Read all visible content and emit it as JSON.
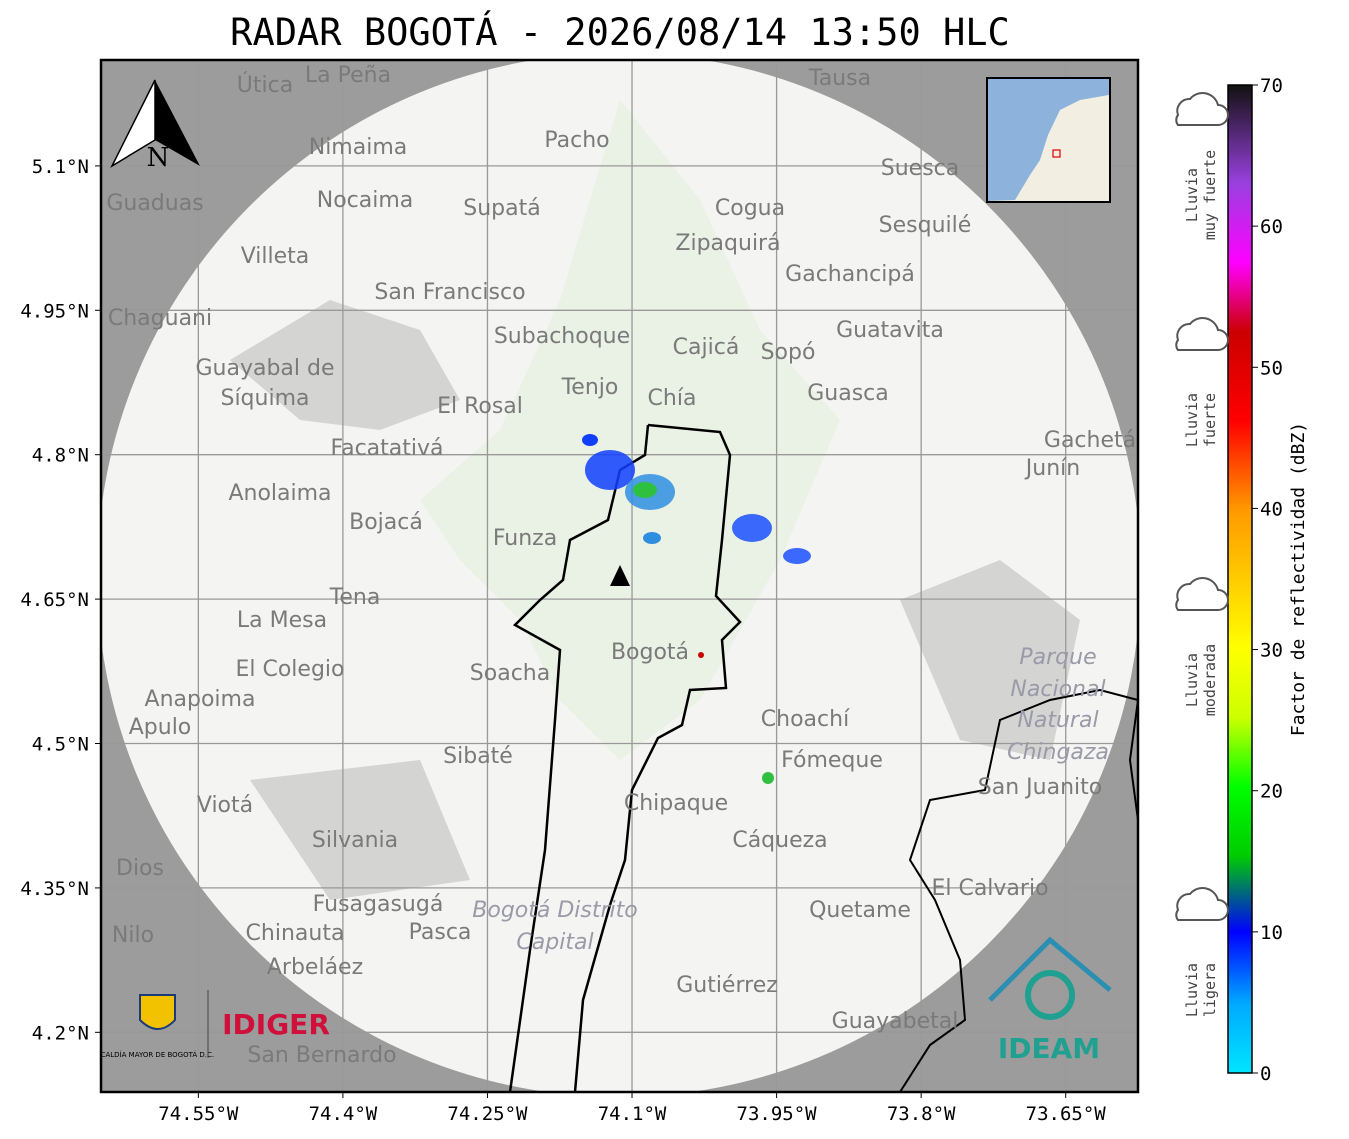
{
  "map": {
    "title": "RADAR BOGOTÁ - 2026/08/14 13:50 HLC",
    "latlim": [
      4.138,
      5.21
    ],
    "lonlim": [
      -74.651,
      -73.575
    ],
    "lat_ticks": [
      {
        "value": 5.1,
        "label": "5.1°N"
      },
      {
        "value": 4.95,
        "label": "4.95°N"
      },
      {
        "value": 4.8,
        "label": "4.8°N"
      },
      {
        "value": 4.65,
        "label": "4.65°N"
      },
      {
        "value": 4.5,
        "label": "4.5°N"
      },
      {
        "value": 4.35,
        "label": "4.35°N"
      },
      {
        "value": 4.2,
        "label": "4.2°N"
      }
    ],
    "lon_ticks": [
      {
        "value": -74.55,
        "label": "74.55°W"
      },
      {
        "value": -74.4,
        "label": "74.4°W"
      },
      {
        "value": -74.25,
        "label": "74.25°W"
      },
      {
        "value": -74.1,
        "label": "74.1°W"
      },
      {
        "value": -73.95,
        "label": "73.95°W"
      },
      {
        "value": -73.8,
        "label": "73.8°W"
      },
      {
        "value": -73.65,
        "label": "73.65°W"
      }
    ],
    "north": "N",
    "colorbar": {
      "label": "Factor de reflectividad (dBZ)",
      "lim": [
        0,
        70
      ],
      "ticks": [
        0,
        10,
        20,
        30,
        40,
        50,
        60,
        70
      ]
    },
    "rain_levels": [
      [
        "Lluvia",
        "muy fuerte"
      ],
      [
        "Lluvia",
        "fuerte"
      ],
      [
        "Lluvia",
        "moderada"
      ],
      [
        "Lluvia",
        "ligera"
      ]
    ],
    "places": [
      "La Peña",
      "Útica",
      "Tausa",
      "Pacho",
      "Nimaima",
      "Suesca",
      "Guaduas",
      "Nocaima",
      "Supatá",
      "Cogua",
      "Sesquilé",
      "Zipaquirá",
      "Villeta",
      "Gachancipá",
      "San Francisco",
      "Chaguani",
      "Guatavita",
      "Subachoque",
      "Cajicá",
      "Sopó",
      "Guayabal de",
      "Síquima",
      "Tenjo",
      "Chía",
      "Guasca",
      "El Rosal",
      "Facatativá",
      "Gachetá",
      "Junín",
      "Anolaima",
      "Bojacá",
      "Funza",
      "Tena",
      "La Mesa",
      "El Colegio",
      "Soacha",
      "Bogotá",
      "Anapoima",
      "Apulo",
      "Choachí",
      "Sibaté",
      "Fómeque",
      "San Juanito",
      "Viotá",
      "Chipaque",
      "Silvania",
      "Cáqueza",
      "Dios",
      "El Calvario",
      "Fusagasugá",
      "Quetame",
      "Nilo",
      "Chinauta",
      "Pasca",
      "Arbeláez",
      "Gutiérrez",
      "Guayabetal",
      "San Bernardo"
    ],
    "park": [
      "Parque",
      "Nacional",
      "Natural",
      "Chingaza"
    ],
    "district": [
      "Bogotá Distrito",
      "Capital"
    ],
    "logos": {
      "alcaldia": "ALCALDÍA MAYOR DE BOGOTÁ D.C.",
      "idiger": "IDIGER",
      "ideam": "IDEAM"
    }
  }
}
